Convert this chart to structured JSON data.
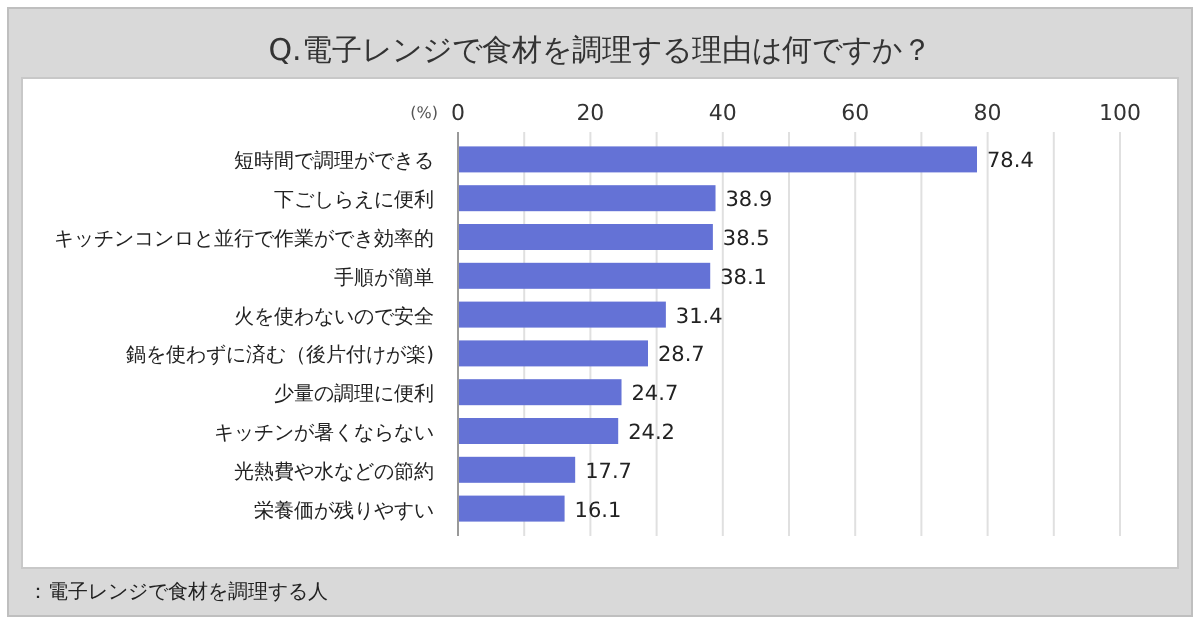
{
  "chart_data": {
    "type": "bar",
    "orientation": "horizontal",
    "title": "Q.電子レンジで食材を調理する理由は何ですか？",
    "xlabel": "(%)",
    "categories": [
      "短時間で調理ができる",
      "下ごしらえに便利",
      "キッチンコンロと並行で作業ができ効率的",
      "手順が簡単",
      "火を使わないので安全",
      "鍋を使わずに済む（後片付けが楽)",
      "少量の調理に便利",
      "キッチンが暑くならない",
      "光熱費や水などの節約",
      "栄養価が残りやすい"
    ],
    "values": [
      78.4,
      38.9,
      38.5,
      38.1,
      31.4,
      28.7,
      24.7,
      24.2,
      17.7,
      16.1
    ],
    "color": "#6472d6",
    "xlim": [
      0,
      100
    ],
    "xticks": [
      0,
      20,
      40,
      60,
      80,
      100
    ],
    "grid": "x",
    "data_labels": true,
    "annotations": [
      "：電子レンジで食材を調理する人"
    ]
  }
}
